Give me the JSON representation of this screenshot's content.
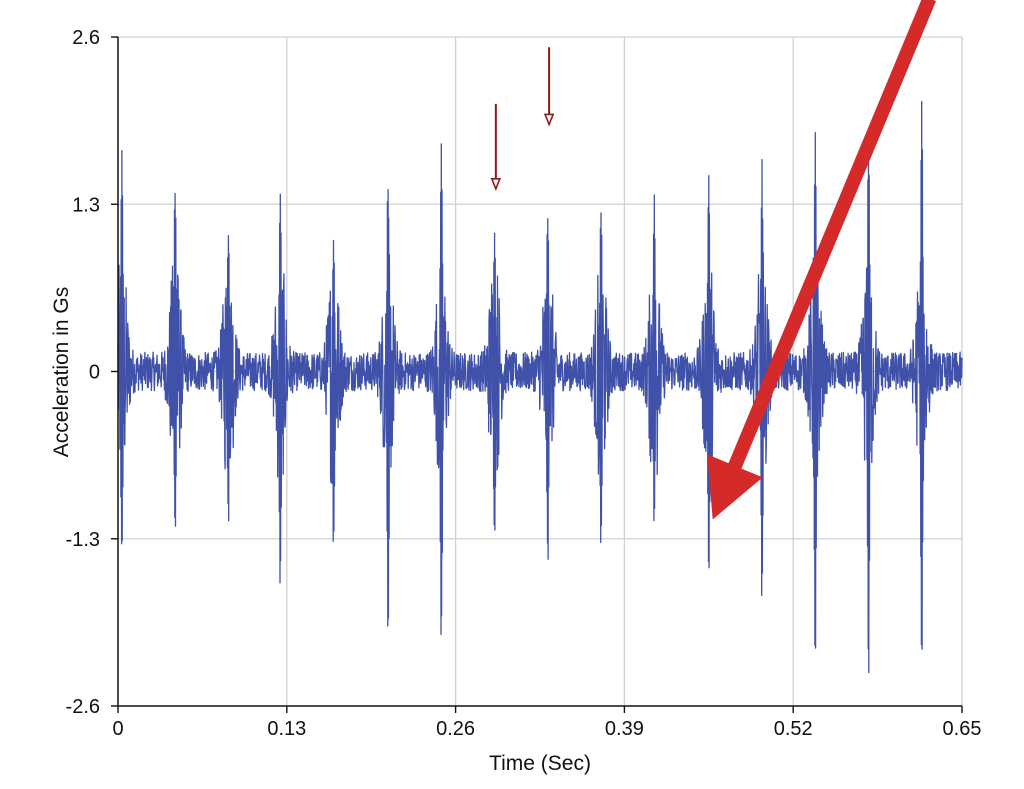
{
  "chart_data": {
    "type": "line",
    "title": "",
    "xlabel": "Time (Sec)",
    "ylabel": "Acceleration in Gs",
    "xlim": [
      0,
      0.65
    ],
    "ylim": [
      -2.6,
      2.6
    ],
    "x_ticks": [
      "0",
      "0.13",
      "0.26",
      "0.39",
      "0.52",
      "0.65"
    ],
    "y_ticks": [
      "2.6",
      "1.3",
      "0",
      "-1.3",
      "-2.6"
    ],
    "grid": true,
    "series": [
      {
        "name": "acceleration",
        "color": "#3f51a8",
        "noise_amplitude": 0.15,
        "impacts": [
          {
            "t": 0.003,
            "peak": 1.75,
            "trough": -1.6
          },
          {
            "t": 0.044,
            "peak": 1.62,
            "trough": -1.37
          },
          {
            "t": 0.085,
            "peak": 1.22,
            "trough": -1.25
          },
          {
            "t": 0.125,
            "peak": 1.45,
            "trough": -1.78
          },
          {
            "t": 0.166,
            "peak": 1.12,
            "trough": -1.53
          },
          {
            "t": 0.208,
            "peak": 1.65,
            "trough": -2.13
          },
          {
            "t": 0.249,
            "peak": 1.92,
            "trough": -2.26
          },
          {
            "t": 0.29,
            "peak": 1.12,
            "trough": -1.47
          },
          {
            "t": 0.331,
            "peak": 1.38,
            "trough": -1.55
          },
          {
            "t": 0.372,
            "peak": 1.42,
            "trough": -1.41
          },
          {
            "t": 0.413,
            "peak": 1.47,
            "trough": -1.25
          },
          {
            "t": 0.455,
            "peak": 1.6,
            "trough": -1.75
          },
          {
            "t": 0.496,
            "peak": 1.65,
            "trough": -1.92
          },
          {
            "t": 0.537,
            "peak": 1.95,
            "trough": -2.28
          },
          {
            "t": 0.578,
            "peak": 1.9,
            "trough": -2.5
          },
          {
            "t": 0.619,
            "peak": 2.12,
            "trough": -2.35
          }
        ]
      }
    ],
    "annotations": [
      {
        "type": "thin-arrow",
        "color": "#8b1a1a",
        "x": 0.291,
        "y_from": 2.08,
        "y_to": 1.42
      },
      {
        "type": "thin-arrow",
        "color": "#8b1a1a",
        "x": 0.332,
        "y_from": 2.52,
        "y_to": 1.92
      },
      {
        "type": "thick-arrow",
        "color": "#d42a2a",
        "x_from": 0.625,
        "y_from": 2.9,
        "x_to": 0.458,
        "y_to": -1.15
      }
    ]
  }
}
